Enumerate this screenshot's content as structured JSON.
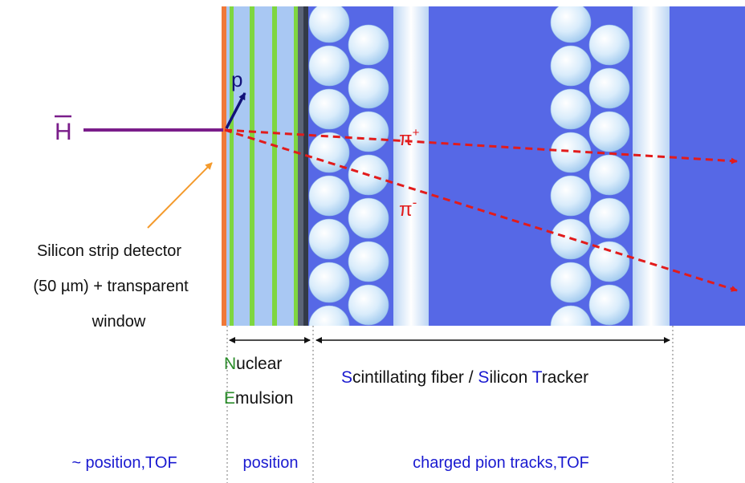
{
  "beam": {
    "symbol": "H",
    "proton_label": "p",
    "pion_plus_label": "π",
    "pion_plus_charge": "+",
    "pion_minus_label": "π",
    "pion_minus_charge": "-"
  },
  "silicon_detector": {
    "line1": "Silicon strip detector",
    "line2": "(50  µm) + transparent",
    "line3": "window"
  },
  "emulsion": {
    "initial1": "N",
    "rest1": "uclear",
    "initial2": "E",
    "rest2": "mulsion"
  },
  "tracker": {
    "s1": "S",
    "t1": "cintillating fiber / ",
    "s2": "S",
    "t2": "ilicon ",
    "s3": "T",
    "t3": "racker"
  },
  "bottom_labels": {
    "col1": "~ position,TOF",
    "col2": "position",
    "col3": "charged pion tracks,TOF"
  },
  "colors": {
    "scint_blue": "#5668e6",
    "antihydrogen": "#7a1d8a",
    "pion_track": "#e21b1b",
    "proton_track": "#12127a",
    "silicon_layer": "#f07838",
    "emulsion_green": "#7ed640",
    "pointer_arrow": "#f49a2c",
    "letter_green": "#2a8c2a",
    "letter_blue": "#1a1ad0"
  }
}
